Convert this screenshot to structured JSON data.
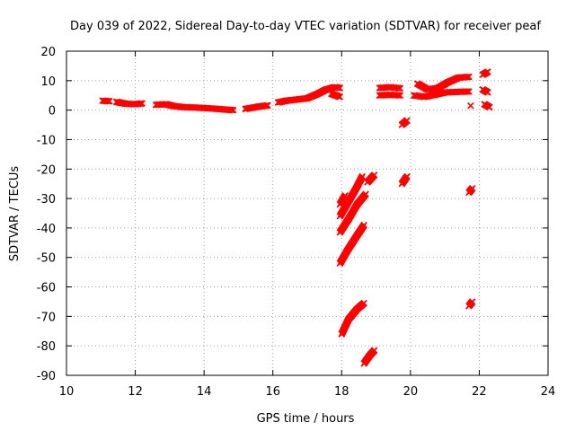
{
  "chart_data": {
    "type": "scatter",
    "title": "Day 039 of 2022, Sidereal Day-to-day VTEC variation (SDTVAR) for receiver peaf",
    "xlabel": "GPS time / hours",
    "ylabel": "SDTVAR / TECUs",
    "xlim": [
      10,
      24
    ],
    "ylim": [
      -90,
      20
    ],
    "xticks": [
      10,
      12,
      14,
      16,
      18,
      20,
      22,
      24
    ],
    "yticks": [
      20,
      10,
      0,
      -10,
      -20,
      -30,
      -40,
      -50,
      -60,
      -70,
      -80,
      -90
    ],
    "grid": true,
    "marker_color": "#ff0000",
    "series": [
      {
        "segments": [
          [
            [
              11.05,
              3.2
            ],
            [
              11.25,
              3.0
            ]
          ],
          [
            [
              11.45,
              2.8
            ],
            [
              11.7,
              2.2
            ],
            [
              12.0,
              2.0
            ],
            [
              12.2,
              2.3
            ]
          ],
          [
            [
              12.6,
              1.8
            ],
            [
              12.9,
              2.0
            ],
            [
              13.1,
              1.4
            ],
            [
              13.4,
              1.0
            ],
            [
              13.7,
              0.9
            ],
            [
              14.0,
              0.7
            ],
            [
              14.3,
              0.5
            ],
            [
              14.6,
              0.2
            ],
            [
              14.85,
              0.0
            ]
          ],
          [
            [
              15.2,
              0.4
            ],
            [
              15.4,
              0.8
            ],
            [
              15.6,
              1.2
            ],
            [
              15.85,
              1.6
            ]
          ],
          [
            [
              16.15,
              2.6
            ],
            [
              16.4,
              3.2
            ],
            [
              16.7,
              3.6
            ],
            [
              17.0,
              4.0
            ],
            [
              17.3,
              5.5
            ],
            [
              17.55,
              7.0
            ],
            [
              17.8,
              7.8
            ],
            [
              17.95,
              7.5
            ]
          ],
          [
            [
              17.7,
              5.5
            ],
            [
              17.95,
              4.5
            ]
          ],
          [
            [
              19.1,
              7.5
            ],
            [
              19.4,
              7.8
            ],
            [
              19.7,
              7.4
            ]
          ],
          [
            [
              19.1,
              5.0
            ],
            [
              19.4,
              5.2
            ],
            [
              19.7,
              5.0
            ]
          ],
          [
            [
              20.2,
              9.0
            ],
            [
              20.5,
              7.0
            ],
            [
              20.8,
              7.5
            ],
            [
              21.1,
              9.5
            ],
            [
              21.4,
              11.0
            ],
            [
              21.7,
              11.3
            ]
          ],
          [
            [
              20.1,
              5.0
            ],
            [
              20.4,
              4.5
            ],
            [
              20.7,
              5.2
            ],
            [
              21.0,
              6.0
            ],
            [
              21.4,
              6.2
            ],
            [
              21.7,
              6.3
            ]
          ],
          [
            [
              22.1,
              12.0
            ],
            [
              22.25,
              13.0
            ]
          ],
          [
            [
              22.1,
              7.0
            ],
            [
              22.25,
              6.0
            ]
          ],
          [
            [
              22.15,
              2.0
            ],
            [
              22.3,
              1.0
            ]
          ],
          [
            [
              21.75,
              1.5
            ]
          ],
          [
            [
              19.75,
              -5.0
            ],
            [
              19.9,
              -3.5
            ]
          ],
          [
            [
              19.75,
              -25.0
            ],
            [
              19.9,
              -22.5
            ]
          ],
          [
            [
              21.7,
              -28.0
            ],
            [
              21.8,
              -26.5
            ]
          ],
          [
            [
              21.7,
              -66.5
            ],
            [
              21.8,
              -65.0
            ]
          ],
          [
            [
              17.95,
              -36.0
            ],
            [
              18.15,
              -32.0
            ],
            [
              18.4,
              -27.0
            ],
            [
              18.6,
              -22.5
            ]
          ],
          [
            [
              17.95,
              -32.0
            ],
            [
              18.1,
              -29.0
            ]
          ],
          [
            [
              17.95,
              -41.5
            ],
            [
              18.2,
              -37.0
            ],
            [
              18.45,
              -32.0
            ],
            [
              18.7,
              -28.5
            ]
          ],
          [
            [
              18.75,
              -24.5
            ],
            [
              18.95,
              -22.0
            ]
          ],
          [
            [
              17.95,
              -52.0
            ],
            [
              18.2,
              -47.0
            ],
            [
              18.45,
              -42.5
            ],
            [
              18.65,
              -39.0
            ]
          ],
          [
            [
              18.0,
              -76.0
            ],
            [
              18.2,
              -71.0
            ],
            [
              18.45,
              -67.5
            ],
            [
              18.65,
              -65.5
            ]
          ],
          [
            [
              18.65,
              -86.0
            ],
            [
              18.8,
              -83.5
            ],
            [
              18.95,
              -81.5
            ]
          ]
        ]
      }
    ]
  }
}
